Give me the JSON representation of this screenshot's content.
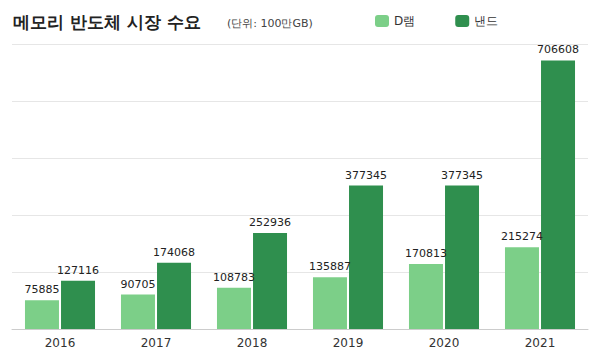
{
  "chart_data": {
    "type": "bar",
    "title": "메모리 반도체 시장 수요",
    "subtitle": "(단위: 100만GB)",
    "categories": [
      "2016",
      "2017",
      "2018",
      "2019",
      "2020",
      "2021"
    ],
    "series": [
      {
        "name": "D램",
        "color": "#7ccf88",
        "values": [
          75885,
          90705,
          108783,
          135887,
          170813,
          215274
        ]
      },
      {
        "name": "낸드",
        "color": "#2f8f4e",
        "values": [
          127116,
          174068,
          252936,
          377345,
          377345,
          706608
        ]
      }
    ],
    "ylim": [
      0,
      750000
    ],
    "yticks": [
      0,
      150000,
      300000,
      450000,
      600000,
      750000
    ],
    "grid": true,
    "legend": "top",
    "data_labels": true,
    "tick_labels": "x"
  }
}
